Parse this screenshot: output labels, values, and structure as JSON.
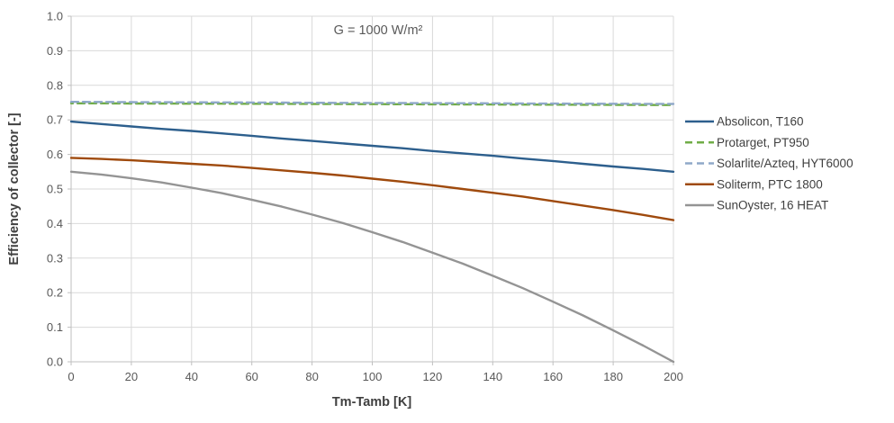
{
  "colors": {
    "background": "#FFFFFF",
    "grid": "#D9D9D9",
    "axis": "#BFBFBF",
    "tick_text": "#595959",
    "title_text": "#404040"
  },
  "chart_data": {
    "type": "line",
    "annotation": "G = 1000 W/m²",
    "xlabel": "Tm-Tamb [K]",
    "ylabel": "Efficiency of collector [-]",
    "xlim": [
      0,
      200
    ],
    "ylim": [
      0.0,
      1.0
    ],
    "x_ticks": [
      "0",
      "20",
      "40",
      "60",
      "80",
      "100",
      "120",
      "140",
      "160",
      "180",
      "200"
    ],
    "x_tick_values": [
      0,
      20,
      40,
      60,
      80,
      100,
      120,
      140,
      160,
      180,
      200
    ],
    "y_ticks": [
      "0.0",
      "0.1",
      "0.2",
      "0.3",
      "0.4",
      "0.5",
      "0.6",
      "0.7",
      "0.8",
      "0.9",
      "1.0"
    ],
    "y_tick_values": [
      0.0,
      0.1,
      0.2,
      0.3,
      0.4,
      0.5,
      0.6,
      0.7,
      0.8,
      0.9,
      1.0
    ],
    "grid": true,
    "legend_position": "right",
    "x": [
      0,
      10,
      20,
      30,
      40,
      50,
      60,
      70,
      80,
      90,
      100,
      110,
      120,
      130,
      140,
      150,
      160,
      170,
      180,
      190,
      200
    ],
    "series": [
      {
        "name": "Absolicon, T160",
        "color": "#2D5F8D",
        "style": "solid",
        "values": [
          0.695,
          0.688,
          0.681,
          0.674,
          0.668,
          0.661,
          0.654,
          0.646,
          0.639,
          0.632,
          0.625,
          0.618,
          0.61,
          0.603,
          0.596,
          0.588,
          0.581,
          0.573,
          0.565,
          0.558,
          0.55
        ]
      },
      {
        "name": "Protarget, PT950",
        "color": "#70AD47",
        "style": "dashed",
        "values": [
          0.748,
          0.7478,
          0.7475,
          0.7473,
          0.747,
          0.7468,
          0.7465,
          0.7463,
          0.746,
          0.7458,
          0.7455,
          0.7453,
          0.745,
          0.7448,
          0.7445,
          0.7443,
          0.744,
          0.7438,
          0.7435,
          0.7433,
          0.743
        ]
      },
      {
        "name": "Solarlite/Azteq, HYT6000",
        "color": "#8FA8C9",
        "style": "dashed",
        "values": [
          0.752,
          0.7517,
          0.7514,
          0.7511,
          0.7508,
          0.7505,
          0.7502,
          0.7499,
          0.7496,
          0.7493,
          0.749,
          0.7487,
          0.7484,
          0.7481,
          0.7478,
          0.7475,
          0.7472,
          0.7469,
          0.7466,
          0.7463,
          0.746
        ]
      },
      {
        "name": "Soliterm, PTC 1800",
        "color": "#9F4A0D",
        "style": "solid",
        "values": [
          0.59,
          0.587,
          0.583,
          0.578,
          0.573,
          0.568,
          0.561,
          0.554,
          0.547,
          0.539,
          0.53,
          0.521,
          0.511,
          0.5,
          0.489,
          0.478,
          0.465,
          0.452,
          0.439,
          0.425,
          0.41
        ]
      },
      {
        "name": "SunOyster, 16 HEAT",
        "color": "#949494",
        "style": "solid",
        "values": [
          0.55,
          0.542,
          0.531,
          0.519,
          0.504,
          0.488,
          0.469,
          0.449,
          0.426,
          0.402,
          0.375,
          0.347,
          0.316,
          0.284,
          0.249,
          0.213,
          0.174,
          0.134,
          0.091,
          0.047,
          0.0
        ]
      }
    ]
  }
}
